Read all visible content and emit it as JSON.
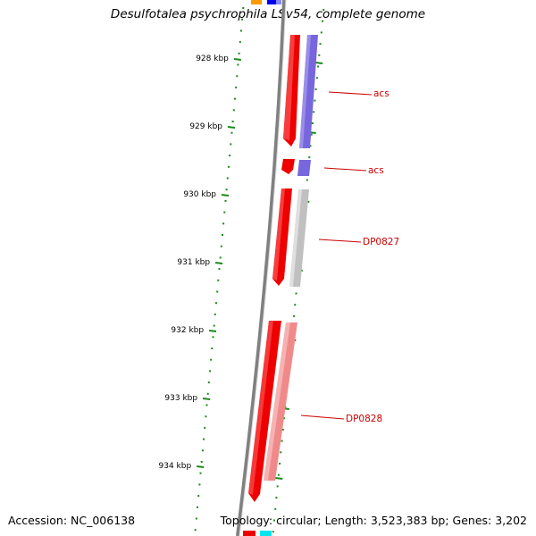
{
  "title": "Desulfotalea psychrophila LSv54, complete genome",
  "footer": {
    "accession": "Accession: NC_006138",
    "topology": "Topology: circular; Length: 3,523,383 bp; Genes: 3,202"
  },
  "ticks": [
    {
      "label": "928 kbp"
    },
    {
      "label": "929 kbp"
    },
    {
      "label": "930 kbp"
    },
    {
      "label": "931 kbp"
    },
    {
      "label": "932 kbp"
    },
    {
      "label": "933 kbp"
    },
    {
      "label": "934 kbp"
    }
  ],
  "genes": [
    {
      "label": "acs",
      "strand": "reverse"
    },
    {
      "label": "acs",
      "strand": "reverse"
    },
    {
      "label": "DP0827",
      "strand": "reverse"
    },
    {
      "label": "DP0828",
      "strand": "reverse"
    }
  ],
  "colors": {
    "backbone": "#808080",
    "tick_marks": "#1a8a1a",
    "gene": "#ee0000",
    "gene_label": "#cc0000",
    "cds_blue": "#7766dd",
    "cds_gray": "#c0c0c0",
    "cds_pink": "#f08a8a",
    "top_orange": "#ff9900",
    "top_blue": "#0000ee",
    "bottom_cyan": "#00e5ee"
  }
}
